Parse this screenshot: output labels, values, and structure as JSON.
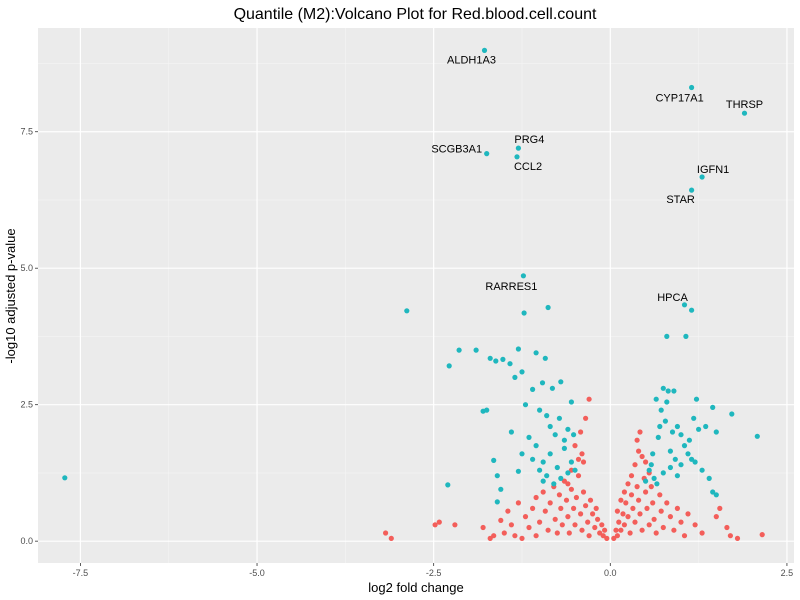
{
  "chart_data": {
    "type": "scatter",
    "title": "Quantile (M2):Volcano Plot for Red.blood.cell.count",
    "xlabel": "log2 fold change",
    "ylabel": "-log10 adjusted p-value",
    "xlim": [
      -8.1,
      2.6
    ],
    "ylim": [
      -0.4,
      9.4
    ],
    "x_ticks": [
      -7.5,
      -5.0,
      -2.5,
      0.0,
      2.5
    ],
    "x_tick_labels": [
      "-7.5",
      "-5.0",
      "-2.5",
      "0.0",
      "2.5"
    ],
    "y_ticks": [
      0.0,
      2.5,
      5.0,
      7.5
    ],
    "y_tick_labels": [
      "0.0",
      "2.5",
      "5.0",
      "7.5"
    ],
    "grid": true,
    "legend": "none",
    "colors": {
      "panel": "#ebebeb",
      "grid_major": "#ffffff",
      "significant": "#1fb7be",
      "not_significant": "#f35e5a"
    },
    "labeled_points": [
      {
        "label": "ALDH1A3",
        "x": -1.78,
        "y": 8.99
      },
      {
        "label": "CYP17A1",
        "x": 1.15,
        "y": 8.31
      },
      {
        "label": "THRSP",
        "x": 1.9,
        "y": 7.84
      },
      {
        "label": "PRG4",
        "x": -1.3,
        "y": 7.2
      },
      {
        "label": "SCGB3A1",
        "x": -1.75,
        "y": 7.1
      },
      {
        "label": "CCL2",
        "x": -1.32,
        "y": 7.04
      },
      {
        "label": "IGFN1",
        "x": 1.3,
        "y": 6.67
      },
      {
        "label": "STAR",
        "x": 1.15,
        "y": 6.43
      },
      {
        "label": "RARRES1",
        "x": -1.23,
        "y": 4.86
      },
      {
        "label": "HPCA",
        "x": 1.05,
        "y": 4.33
      }
    ],
    "series": [
      {
        "group": "significant",
        "points": [
          [
            -7.72,
            1.16
          ],
          [
            -2.88,
            4.22
          ],
          [
            -2.14,
            3.5
          ],
          [
            -2.28,
            3.21
          ],
          [
            -2.3,
            1.03
          ],
          [
            -1.9,
            3.5
          ],
          [
            -1.3,
            3.52
          ],
          [
            -1.52,
            3.33
          ],
          [
            -1.7,
            3.35
          ],
          [
            -1.42,
            3.25
          ],
          [
            -0.92,
            3.35
          ],
          [
            -1.05,
            3.45
          ],
          [
            -1.22,
            4.18
          ],
          [
            -0.88,
            4.28
          ],
          [
            -1.62,
            3.3
          ],
          [
            -1.8,
            2.38
          ],
          [
            -1.75,
            2.4
          ],
          [
            -1.65,
            1.48
          ],
          [
            -1.6,
            1.2
          ],
          [
            -1.55,
            0.95
          ],
          [
            -1.6,
            0.72
          ],
          [
            -1.25,
            3.1
          ],
          [
            -1.35,
            3.0
          ],
          [
            -1.1,
            2.78
          ],
          [
            -0.96,
            2.9
          ],
          [
            -0.82,
            2.8
          ],
          [
            -0.7,
            2.92
          ],
          [
            -0.55,
            2.55
          ],
          [
            -0.72,
            2.25
          ],
          [
            -0.9,
            2.3
          ],
          [
            -1.0,
            2.4
          ],
          [
            -0.85,
            2.1
          ],
          [
            -0.78,
            1.95
          ],
          [
            -0.65,
            1.85
          ],
          [
            -0.6,
            2.05
          ],
          [
            -0.52,
            1.95
          ],
          [
            -1.15,
            1.9
          ],
          [
            -1.05,
            1.75
          ],
          [
            -1.25,
            1.6
          ],
          [
            -1.1,
            1.5
          ],
          [
            -0.95,
            1.45
          ],
          [
            -0.85,
            1.6
          ],
          [
            -0.75,
            1.35
          ],
          [
            -0.6,
            1.25
          ],
          [
            -0.55,
            1.45
          ],
          [
            -0.7,
            1.15
          ],
          [
            -0.9,
            1.2
          ],
          [
            -1.0,
            1.3
          ],
          [
            -0.5,
            1.3
          ],
          [
            -0.65,
            1.7
          ],
          [
            -1.3,
            1.28
          ],
          [
            -1.2,
            2.5
          ],
          [
            -1.4,
            2.0
          ],
          [
            -0.8,
            1.05
          ],
          [
            -0.95,
            1.1
          ],
          [
            0.55,
            1.3
          ],
          [
            0.6,
            1.6
          ],
          [
            0.68,
            1.9
          ],
          [
            0.7,
            2.1
          ],
          [
            0.72,
            2.4
          ],
          [
            0.8,
            2.55
          ],
          [
            0.82,
            2.75
          ],
          [
            0.9,
            2.75
          ],
          [
            0.78,
            2.2
          ],
          [
            0.88,
            2.0
          ],
          [
            0.95,
            2.1
          ],
          [
            1.0,
            1.95
          ],
          [
            1.05,
            1.75
          ],
          [
            1.1,
            1.6
          ],
          [
            1.15,
            1.5
          ],
          [
            1.2,
            1.45
          ],
          [
            1.3,
            1.3
          ],
          [
            1.25,
            2.05
          ],
          [
            1.35,
            2.1
          ],
          [
            1.45,
            2.45
          ],
          [
            1.5,
            2.0
          ],
          [
            1.72,
            2.33
          ],
          [
            2.08,
            1.92
          ],
          [
            1.4,
            1.15
          ],
          [
            1.45,
            0.9
          ],
          [
            1.5,
            0.85
          ],
          [
            0.62,
            1.15
          ],
          [
            0.75,
            1.25
          ],
          [
            0.85,
            1.35
          ],
          [
            0.92,
            1.5
          ],
          [
            0.65,
            2.6
          ],
          [
            0.75,
            2.8
          ],
          [
            1.22,
            2.6
          ],
          [
            0.5,
            1.1
          ],
          [
            0.58,
            1.4
          ],
          [
            0.66,
            1.05
          ],
          [
            0.95,
            1.2
          ],
          [
            1.12,
            1.85
          ],
          [
            1.18,
            2.25
          ],
          [
            0.8,
            3.75
          ],
          [
            1.07,
            3.75
          ],
          [
            1.15,
            4.23
          ],
          [
            0.85,
            1.65
          ],
          [
            1.0,
            1.4
          ]
        ]
      },
      {
        "group": "not_significant",
        "points": [
          [
            -3.18,
            0.15
          ],
          [
            -3.1,
            0.05
          ],
          [
            -2.48,
            0.3
          ],
          [
            -2.42,
            0.35
          ],
          [
            -2.2,
            0.3
          ],
          [
            -1.8,
            0.25
          ],
          [
            -1.65,
            0.1
          ],
          [
            -1.55,
            0.38
          ],
          [
            -1.45,
            0.55
          ],
          [
            -1.4,
            0.3
          ],
          [
            -1.3,
            0.7
          ],
          [
            -1.2,
            0.45
          ],
          [
            -1.15,
            0.25
          ],
          [
            -1.1,
            0.6
          ],
          [
            -1.05,
            0.8
          ],
          [
            -1.0,
            0.35
          ],
          [
            -0.95,
            0.9
          ],
          [
            -0.92,
            0.55
          ],
          [
            -0.88,
            0.2
          ],
          [
            -0.85,
            0.7
          ],
          [
            -0.8,
            1.0
          ],
          [
            -0.78,
            0.4
          ],
          [
            -0.75,
            0.15
          ],
          [
            -0.72,
            0.85
          ],
          [
            -0.7,
            0.6
          ],
          [
            -0.68,
            0.3
          ],
          [
            -0.65,
            1.1
          ],
          [
            -0.62,
            0.75
          ],
          [
            -0.6,
            0.45
          ],
          [
            -0.58,
            0.15
          ],
          [
            -0.55,
            0.95
          ],
          [
            -0.52,
            0.6
          ],
          [
            -0.5,
            0.3
          ],
          [
            -0.48,
            0.8
          ],
          [
            -0.45,
            1.2
          ],
          [
            -0.42,
            0.5
          ],
          [
            -0.4,
            0.2
          ],
          [
            -0.38,
            0.9
          ],
          [
            -0.35,
            0.65
          ],
          [
            -0.32,
            0.35
          ],
          [
            -0.3,
            0.1
          ],
          [
            -0.28,
            0.75
          ],
          [
            -0.25,
            0.5
          ],
          [
            -0.22,
            0.25
          ],
          [
            -0.2,
            0.6
          ],
          [
            -0.18,
            0.4
          ],
          [
            -0.15,
            0.15
          ],
          [
            -0.12,
            0.3
          ],
          [
            -0.1,
            0.1
          ],
          [
            -0.08,
            0.2
          ],
          [
            -0.05,
            0.05
          ],
          [
            -0.5,
            1.75
          ],
          [
            -0.4,
            1.6
          ],
          [
            -0.38,
            1.45
          ],
          [
            -0.42,
            2.0
          ],
          [
            -0.35,
            2.25
          ],
          [
            -0.3,
            2.6
          ],
          [
            -0.45,
            1.5
          ],
          [
            -0.55,
            1.3
          ],
          [
            -0.6,
            1.05
          ],
          [
            -1.35,
            0.1
          ],
          [
            -1.5,
            0.15
          ],
          [
            -1.7,
            0.05
          ],
          [
            -1.25,
            0.05
          ],
          [
            -1.05,
            0.1
          ],
          [
            0.05,
            0.05
          ],
          [
            0.08,
            0.2
          ],
          [
            0.1,
            0.1
          ],
          [
            0.12,
            0.35
          ],
          [
            0.15,
            0.2
          ],
          [
            0.18,
            0.5
          ],
          [
            0.2,
            0.3
          ],
          [
            0.22,
            0.7
          ],
          [
            0.25,
            0.45
          ],
          [
            0.28,
            0.15
          ],
          [
            0.3,
            0.85
          ],
          [
            0.32,
            0.6
          ],
          [
            0.35,
            0.35
          ],
          [
            0.38,
            1.0
          ],
          [
            0.4,
            0.75
          ],
          [
            0.42,
            0.5
          ],
          [
            0.45,
            0.2
          ],
          [
            0.48,
            1.15
          ],
          [
            0.5,
            0.9
          ],
          [
            0.52,
            0.6
          ],
          [
            0.55,
            0.3
          ],
          [
            0.58,
            1.0
          ],
          [
            0.6,
            0.7
          ],
          [
            0.62,
            0.4
          ],
          [
            0.65,
            0.15
          ],
          [
            0.7,
            0.85
          ],
          [
            0.72,
            0.55
          ],
          [
            0.75,
            0.25
          ],
          [
            0.8,
            0.7
          ],
          [
            0.85,
            0.45
          ],
          [
            0.9,
            0.2
          ],
          [
            0.95,
            0.6
          ],
          [
            1.0,
            0.35
          ],
          [
            1.05,
            0.1
          ],
          [
            1.1,
            0.5
          ],
          [
            1.2,
            0.3
          ],
          [
            1.3,
            0.15
          ],
          [
            1.5,
            0.45
          ],
          [
            1.55,
            0.6
          ],
          [
            1.65,
            0.25
          ],
          [
            1.7,
            0.1
          ],
          [
            1.8,
            0.05
          ],
          [
            2.15,
            0.12
          ],
          [
            0.35,
            1.4
          ],
          [
            0.4,
            1.65
          ],
          [
            0.45,
            1.55
          ],
          [
            0.38,
            1.85
          ],
          [
            0.42,
            2.0
          ],
          [
            0.5,
            1.45
          ],
          [
            0.3,
            1.2
          ],
          [
            0.25,
            1.05
          ],
          [
            0.2,
            0.9
          ],
          [
            0.15,
            0.75
          ],
          [
            0.1,
            0.55
          ],
          [
            0.55,
            1.25
          ]
        ]
      }
    ]
  }
}
